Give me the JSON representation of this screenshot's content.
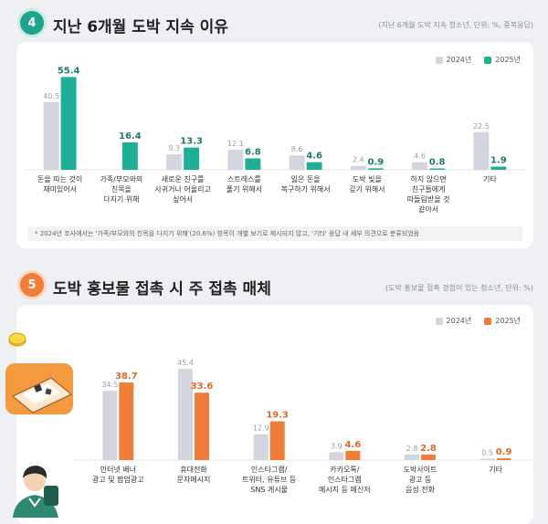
{
  "section1": {
    "number": "4",
    "title": "지난 6개월 도박 지속 이유",
    "note": "(지난 6개월 도박 지속 청소년, 단위: %, 중복응답)",
    "footnote": "* 2024년 조사에서는 '가족/부모와의 친목을 다지기 위해'(20.6%) 항목이 개별 보기로 제시되지 않고, '기타' 응답 내 세부 의견으로 분류되었음",
    "colors": {
      "y2024": "#d3d6de",
      "y2025": "#1fae96",
      "label2025": "#1f7a6c"
    }
  },
  "section2": {
    "number": "5",
    "title": "도박 홍보물 접촉 시 주 접촉 매체",
    "note": "(도박 홍보물 접촉 경험이 있는 청소년, 단위: %)",
    "colors": {
      "y2024": "#d3d6de",
      "y2025": "#f07e3b",
      "label2025": "#e0692a"
    }
  },
  "chart_data": [
    {
      "type": "bar",
      "title": "지난 6개월 도박 지속 이유",
      "categories": [
        [
          "돈을 따는 것이",
          "재미있어서"
        ],
        [
          "가족/부모와의",
          "친목을",
          "다지기 위해"
        ],
        [
          "새로운 친구를",
          "사귀거나 어울리고",
          "싶어서"
        ],
        [
          "스트레스를",
          "풀기 위해서"
        ],
        [
          "잃은 돈을",
          "복구하기 위해서"
        ],
        [
          "도박 빚을",
          "갚기 위해서"
        ],
        [
          "하지 않으면",
          "친구들에게",
          "따돌림받을 것",
          "같아서"
        ],
        [
          "기타"
        ]
      ],
      "series": [
        {
          "name": "2024년",
          "values": [
            40.5,
            null,
            9.3,
            12.1,
            8.6,
            2.4,
            4.6,
            22.5
          ]
        },
        {
          "name": "2025년",
          "values": [
            55.4,
            16.4,
            13.3,
            6.8,
            4.6,
            0.9,
            0.8,
            1.9
          ]
        }
      ],
      "ylim": [
        0,
        60
      ]
    },
    {
      "type": "bar",
      "title": "도박 홍보물 접촉 시 주 접촉 매체",
      "categories": [
        [
          "인터넷 배너",
          "광고 및 팝업광고"
        ],
        [
          "휴대전화",
          "문자메시지"
        ],
        [
          "인스타그램/",
          "트위터, 유튜브 등",
          "SNS 게시물"
        ],
        [
          "카카오톡/",
          "인스타그램",
          "메시지 등 메신저"
        ],
        [
          "도박사이트",
          "광고 등",
          "음성 전화"
        ],
        [
          "기타"
        ]
      ],
      "series": [
        {
          "name": "2024년",
          "values": [
            34.5,
            45.4,
            12.9,
            3.9,
            2.8,
            0.5
          ]
        },
        {
          "name": "2025년",
          "values": [
            38.7,
            33.6,
            19.3,
            4.6,
            2.8,
            0.9
          ]
        }
      ],
      "ylim": [
        0,
        50
      ]
    }
  ]
}
